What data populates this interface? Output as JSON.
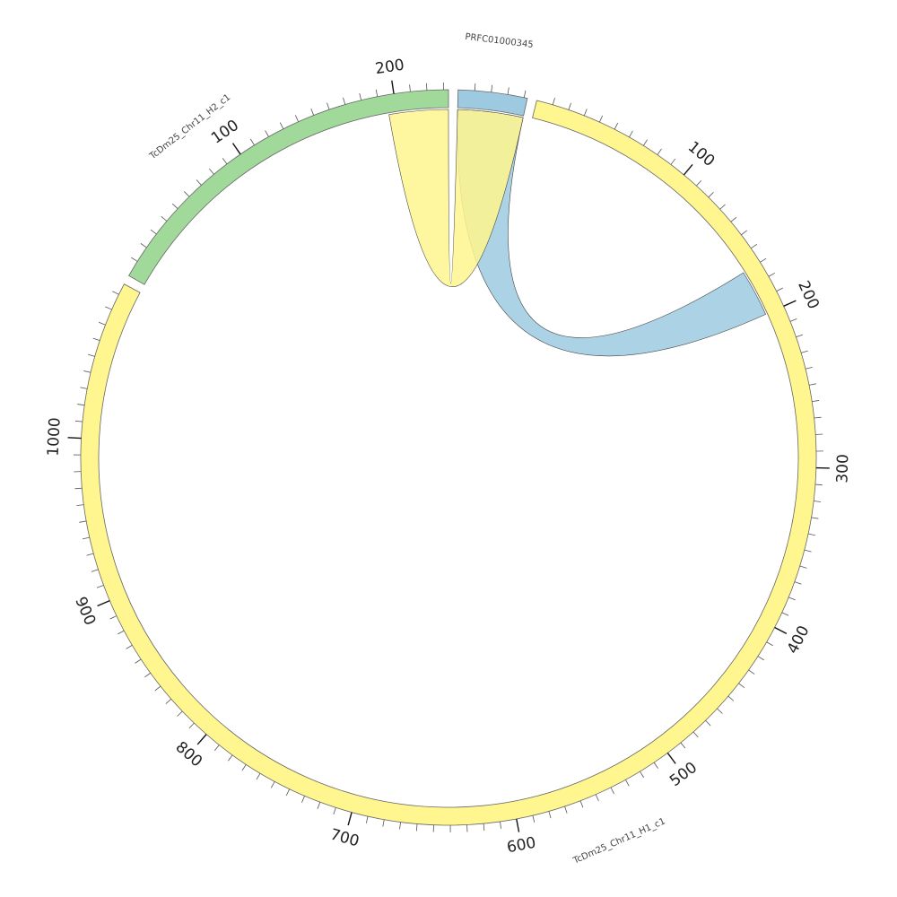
{
  "segments": [
    {
      "id": "PRFC01000345",
      "label": "PRFC01000345",
      "length": 42,
      "color": "#9ECAE1"
    },
    {
      "id": "TcDm25_Chr11_H1_c1",
      "label": "TcDm25_Chr11_H1_c1",
      "length": 1097,
      "color": "#FFF68F"
    },
    {
      "id": "TcDm25_Chr11_H2_c1",
      "label": "TcDm25_Chr11_H2_c1",
      "length": 233,
      "color": "#A1D99B"
    }
  ],
  "tick_labels": {
    "PRFC01000345": [],
    "TcDm25_Chr11_H1_c1": [
      "100",
      "200",
      "300",
      "400",
      "500",
      "600",
      "700",
      "800",
      "900",
      "1000"
    ],
    "TcDm25_Chr11_H2_c1": [
      "100",
      "200"
    ]
  },
  "tick_interval": 10,
  "tick_label_interval": 100,
  "links": [
    {
      "from": {
        "segment": "PRFC01000345",
        "start": 0,
        "end": 42
      },
      "to": {
        "segment": "TcDm25_Chr11_H1_c1",
        "start": 170,
        "end": 200
      },
      "color": "#9ECAE1"
    },
    {
      "from": {
        "segment": "PRFC01000345",
        "start": 0,
        "end": 42
      },
      "to": {
        "segment": "TcDm25_Chr11_H2_c1",
        "start": 195,
        "end": 233
      },
      "color": "#FFF68F"
    }
  ]
}
